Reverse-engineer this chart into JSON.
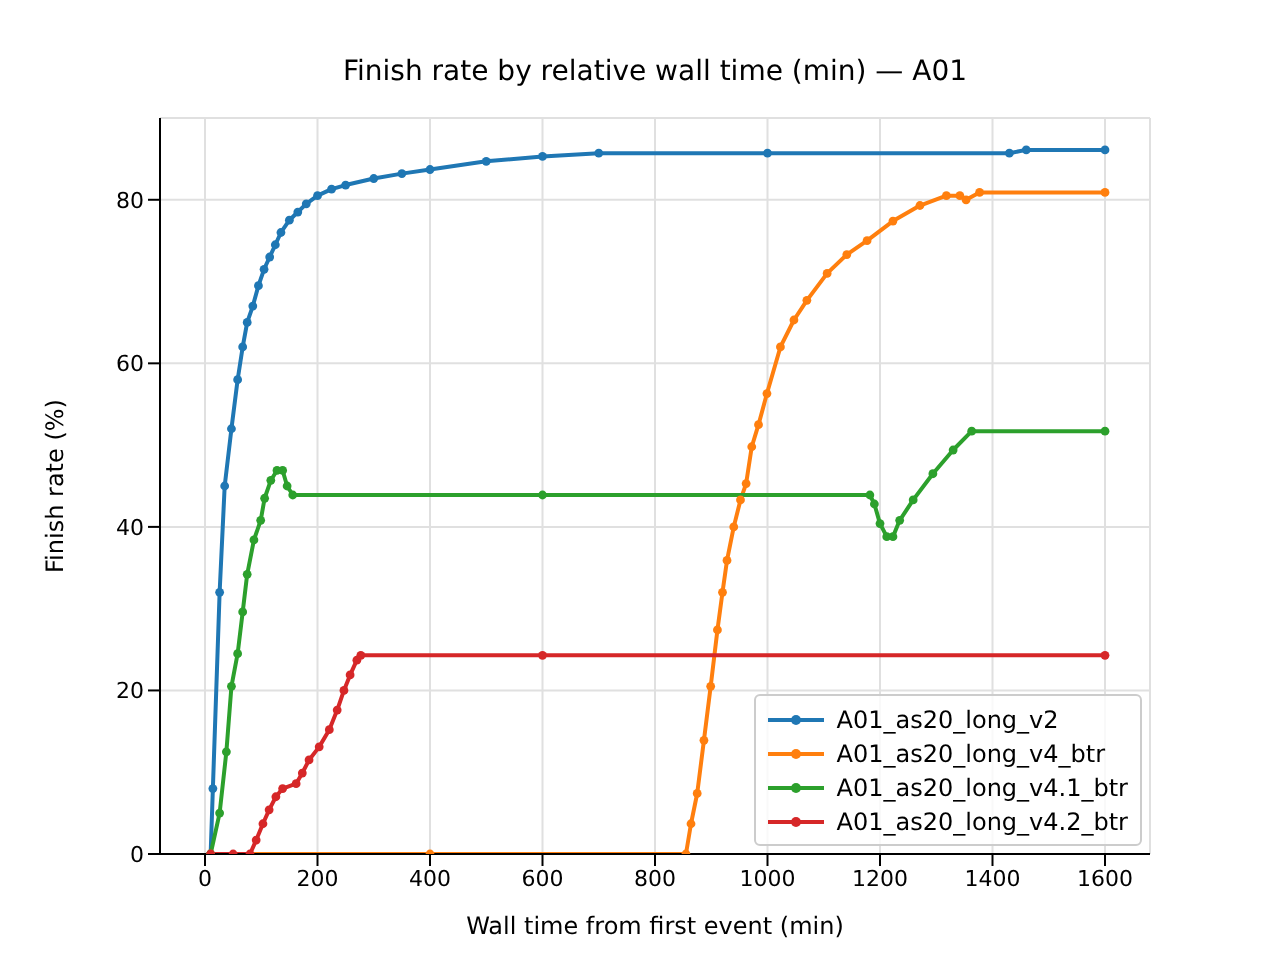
{
  "chart_data": {
    "type": "line",
    "title": "Finish rate by relative wall time (min) — A01",
    "xlabel": "Wall time from first event (min)",
    "ylabel": "Finish rate (%)",
    "xlim": [
      -80,
      1680
    ],
    "xticks": [
      0,
      200,
      400,
      600,
      800,
      1000,
      1200,
      1400,
      1600
    ],
    "ylim": [
      0,
      90
    ],
    "yticks": [
      0,
      20,
      40,
      60,
      80
    ],
    "grid": true,
    "legend": "bottom right",
    "marker": "circle",
    "line_style": "solid",
    "series": [
      {
        "name": "A01_as20_long_v2",
        "color": "#1f77b4",
        "x": [
          10,
          14,
          26,
          35,
          47,
          58,
          67,
          75,
          85,
          95,
          105,
          115,
          125,
          135,
          150,
          165,
          180,
          200,
          225,
          250,
          300,
          350,
          400,
          500,
          600,
          700,
          1000,
          1430,
          1460,
          1600
        ],
        "values": [
          0,
          8,
          32,
          45,
          52,
          58,
          62,
          65,
          67,
          69.5,
          71.5,
          73,
          74.5,
          76,
          77.5,
          78.5,
          79.5,
          80.5,
          81.3,
          81.8,
          82.6,
          83.2,
          83.7,
          84.7,
          85.3,
          85.7,
          85.7,
          85.7,
          86.1,
          86.1
        ]
      },
      {
        "name": "A01_as20_long_v4_btr",
        "color": "#ff7f0e",
        "x": [
          10,
          400,
          855,
          864,
          875,
          887,
          899,
          911,
          920,
          928,
          940,
          952,
          962,
          972,
          984,
          999,
          1023,
          1047,
          1070,
          1106,
          1141,
          1177,
          1223,
          1271,
          1318,
          1342,
          1353,
          1377,
          1600
        ],
        "values": [
          0,
          0,
          0,
          3.7,
          7.4,
          13.9,
          20.5,
          27.4,
          32,
          35.9,
          40,
          43.3,
          45.3,
          49.8,
          52.5,
          56.3,
          62,
          65.3,
          67.7,
          71,
          73.3,
          75,
          77.4,
          79.3,
          80.5,
          80.5,
          80,
          80.9,
          80.9
        ]
      },
      {
        "name": "A01_as20_long_v4.1_btr",
        "color": "#2ca02c",
        "x": [
          10,
          26,
          38,
          47,
          58,
          67,
          75,
          87,
          99,
          106,
          117,
          128,
          138,
          146,
          156,
          600,
          1182,
          1190,
          1200,
          1212,
          1223,
          1235,
          1259,
          1294,
          1330,
          1363,
          1600
        ],
        "values": [
          0,
          5,
          12.5,
          20.5,
          24.5,
          29.6,
          34.2,
          38.4,
          40.8,
          43.5,
          45.7,
          46.9,
          46.9,
          45,
          43.9,
          43.9,
          43.9,
          42.8,
          40.4,
          38.8,
          38.8,
          40.8,
          43.3,
          46.5,
          49.4,
          51.7,
          51.7
        ]
      },
      {
        "name": "A01_as20_long_v4.2_btr",
        "color": "#d62728",
        "x": [
          10,
          50,
          80,
          91,
          103,
          114,
          126,
          138,
          162,
          173,
          185,
          203,
          221,
          235,
          247,
          258,
          270,
          277,
          600,
          1600
        ],
        "values": [
          0,
          0,
          0,
          1.7,
          3.7,
          5.4,
          7,
          8,
          8.6,
          9.9,
          11.5,
          13.1,
          15.2,
          17.6,
          20,
          21.9,
          23.7,
          24.3,
          24.3,
          24.3
        ]
      }
    ]
  }
}
